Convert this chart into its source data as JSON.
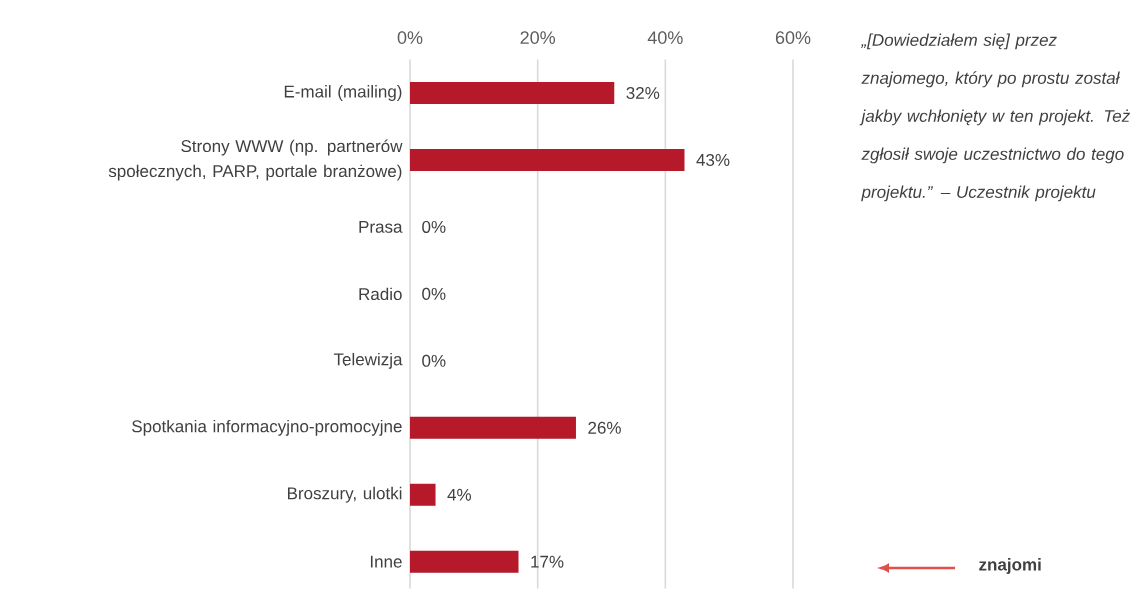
{
  "chart_data": {
    "type": "bar",
    "orientation": "horizontal",
    "categories": [
      "E-mail (mailing)",
      "Strony WWW (np. partnerów społecznych, PARP, portale branżowe)",
      "Prasa",
      "Radio",
      "Telewizja",
      "Spotkania informacyjno-promocyjne",
      "Broszury, ulotki",
      "Inne"
    ],
    "values": [
      32,
      43,
      0,
      0,
      0,
      26,
      4,
      17
    ],
    "value_labels": [
      "32%",
      "43%",
      "0%",
      "0%",
      "0%",
      "26%",
      "4%",
      "17%"
    ],
    "color": "#b5192a",
    "xlim": [
      0,
      60
    ],
    "xticks": [
      {
        "value": 0,
        "label": "0%"
      },
      {
        "value": 20,
        "label": "20%"
      },
      {
        "value": 40,
        "label": "40%"
      },
      {
        "value": 60,
        "label": "60%"
      }
    ],
    "grid": "x",
    "annotations": [
      "„[Dowiedziałem się] przez znajomego, który po prostu został jakby wchłonięty w ten projekt. Też zgłosił swoje uczestnictwo do tego projektu.” – Uczestnik projektu",
      "znajomi"
    ]
  }
}
